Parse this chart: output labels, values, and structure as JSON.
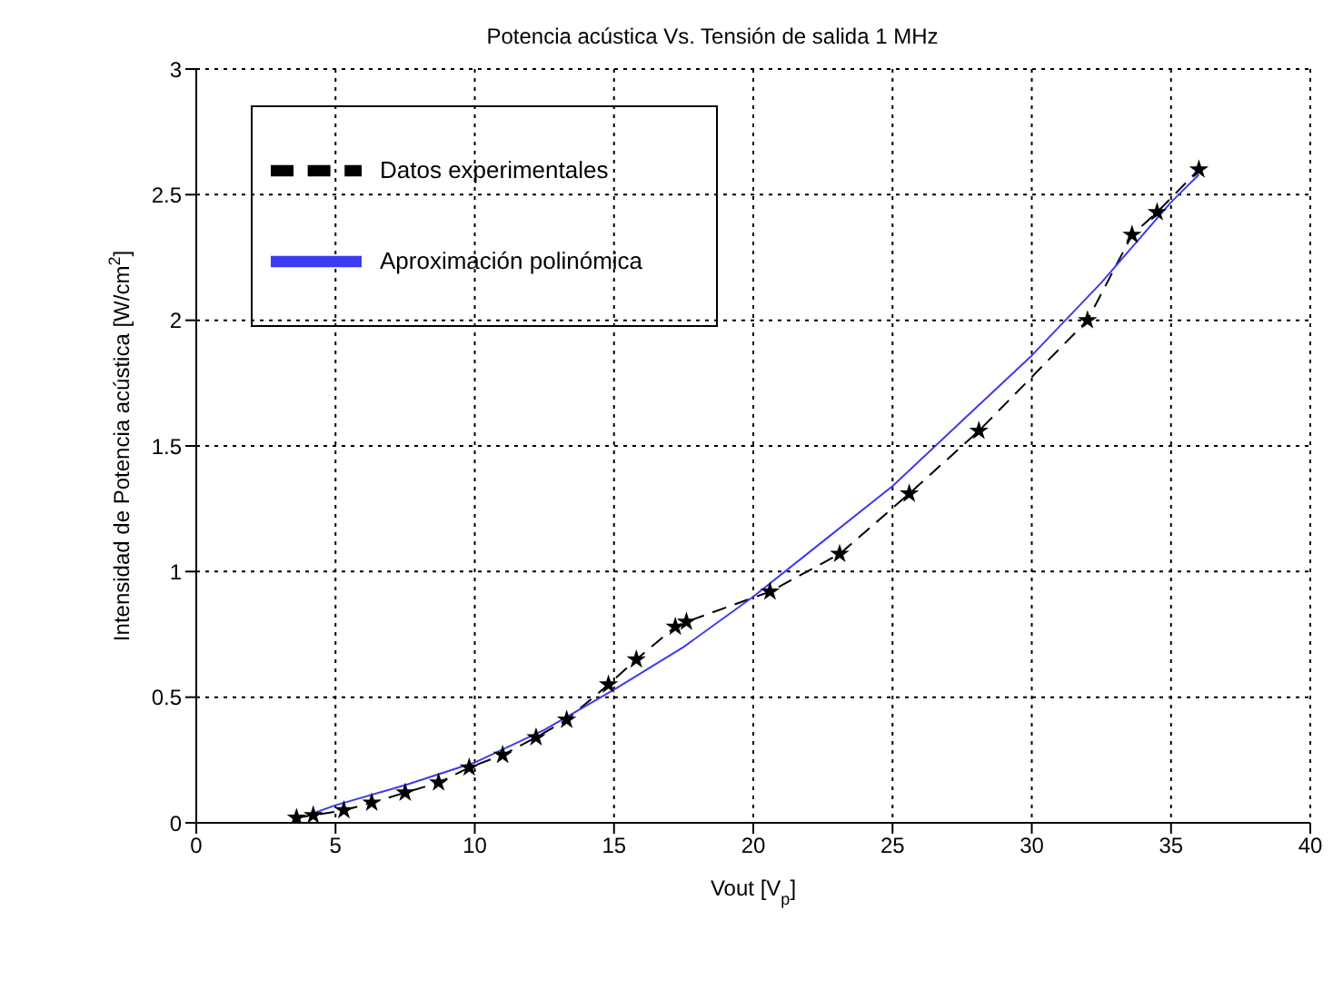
{
  "chart_data": {
    "type": "line",
    "title": "Potencia acústica Vs. Tensión de salida 1 MHz",
    "xlabel": "Vout [V$_{p}$]",
    "ylabel": "Intensidad de Potencia acústica [W/cm$^{2}$]",
    "xlim": [
      0,
      40
    ],
    "xticks": [
      0,
      5,
      10,
      15,
      20,
      25,
      30,
      35,
      40
    ],
    "ylim": [
      0,
      3
    ],
    "yticks": [
      0,
      0.5,
      1,
      1.5,
      2,
      2.5,
      3
    ],
    "grid": true,
    "legend": "top left",
    "series": [
      {
        "name": "Datos experimentales",
        "color": "#000000",
        "marker": "star",
        "line_style": "dashed",
        "x": [
          3.6,
          4.2,
          5.3,
          6.3,
          7.5,
          8.7,
          9.8,
          11,
          12.2,
          13.3,
          14.8,
          15.8,
          17.2,
          17.6,
          20.6,
          23.1,
          25.6,
          28.1,
          32,
          33.6,
          34.5,
          36
        ],
        "values": [
          0.02,
          0.03,
          0.05,
          0.08,
          0.12,
          0.16,
          0.22,
          0.27,
          0.34,
          0.41,
          0.55,
          0.65,
          0.78,
          0.8,
          0.92,
          1.07,
          1.31,
          1.56,
          2.0,
          2.34,
          2.43,
          2.6
        ]
      },
      {
        "name": "Aproximación polinómica",
        "color": "#3b3bf0",
        "marker": "none",
        "line_style": "solid",
        "x": [
          4,
          5,
          7.5,
          10,
          12.5,
          15,
          17.5,
          20,
          22.5,
          25,
          27.5,
          30,
          32.5,
          35,
          36
        ],
        "values": [
          0.03,
          0.07,
          0.15,
          0.24,
          0.37,
          0.53,
          0.7,
          0.9,
          1.12,
          1.34,
          1.6,
          1.86,
          2.15,
          2.47,
          2.58
        ]
      }
    ]
  }
}
